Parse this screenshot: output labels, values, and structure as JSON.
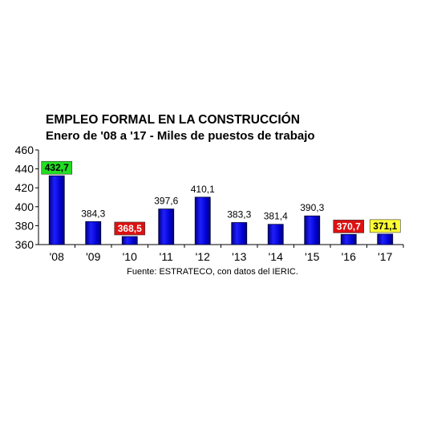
{
  "chart_data": {
    "type": "bar",
    "title": "EMPLEO FORMAL EN LA CONSTRUCCIÓN",
    "subtitle": "Enero de '08 a '17 - Miles de puestos de trabajo",
    "source": "Fuente: ESTRATECO, con datos del IERIC.",
    "categories": [
      "'08",
      "'09",
      "'10",
      "'11",
      "'12",
      "'13",
      "'14",
      "'15",
      "'16",
      "'17"
    ],
    "values": [
      432.7,
      384.3,
      368.5,
      397.6,
      410.1,
      383.3,
      381.4,
      390.3,
      370.7,
      371.1
    ],
    "value_labels": [
      "432,7",
      "384,3",
      "368,5",
      "397,6",
      "410,1",
      "383,3",
      "381,4",
      "390,3",
      "370,7",
      "371,1"
    ],
    "label_highlight": [
      "#22dd22",
      "",
      "#dd1111",
      "",
      "",
      "",
      "",
      "",
      "#dd1111",
      "#ffff33"
    ],
    "label_text_color": [
      "#000000",
      "#000000",
      "#ffffff",
      "#000000",
      "#000000",
      "#000000",
      "#000000",
      "#000000",
      "#ffffff",
      "#000000"
    ],
    "yticks": [
      "360",
      "380",
      "400",
      "420",
      "440",
      "460"
    ],
    "ylim": [
      360,
      460
    ],
    "bar_color": "#0000dd",
    "grid": false,
    "legend": "none"
  }
}
